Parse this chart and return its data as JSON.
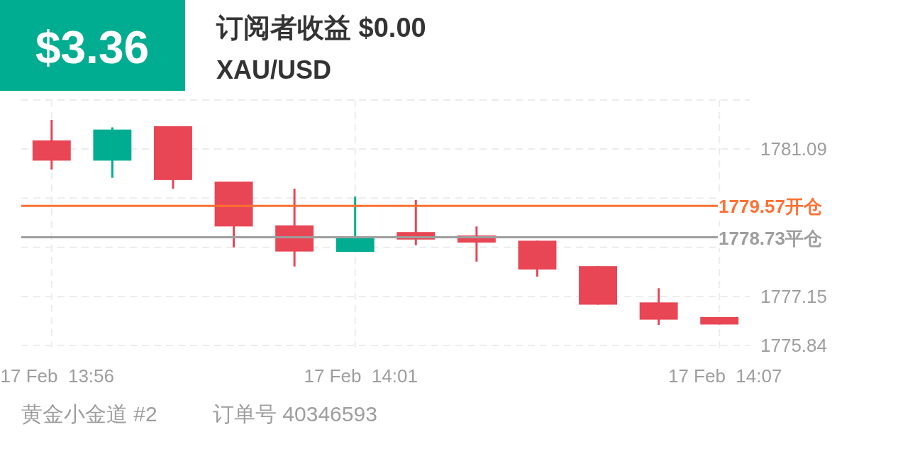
{
  "chart_data": {
    "type": "candlestick",
    "title": "订阅者收益 $0.00",
    "subtitle": "XAU/USD",
    "categories": [
      "17 Feb  13:56",
      null,
      null,
      null,
      null,
      "17 Feb  14:01",
      null,
      null,
      null,
      null,
      null,
      "17 Feb  14:07"
    ],
    "ohlc": [
      [
        1781.32,
        1781.87,
        1780.54,
        1780.78
      ],
      [
        1780.78,
        1781.67,
        1780.32,
        1781.61
      ],
      [
        1781.7,
        1781.7,
        1780.03,
        1780.26
      ],
      [
        1780.22,
        1780.22,
        1778.46,
        1779.02
      ],
      [
        1779.05,
        1780.03,
        1777.95,
        1778.35
      ],
      [
        1778.34,
        1779.82,
        1778.34,
        1778.73
      ],
      [
        1778.87,
        1779.73,
        1778.52,
        1778.67
      ],
      [
        1778.78,
        1779.02,
        1778.08,
        1778.59
      ],
      [
        1778.64,
        1778.64,
        1777.68,
        1777.87
      ],
      [
        1777.96,
        1777.96,
        1776.93,
        1776.93
      ],
      [
        1776.99,
        1777.37,
        1776.39,
        1776.53
      ],
      [
        1776.6,
        1776.6,
        1776.4,
        1776.4
      ]
    ],
    "colors": [
      "#e84655",
      "#00ad91",
      "#e84655",
      "#e84655",
      "#e84655",
      "#00ad91",
      "#e84655",
      "#e84655",
      "#e84655",
      "#e84655",
      "#e84655",
      "#e84655"
    ],
    "ylim": [
      1775.84,
      1782.4
    ],
    "yticks": [
      1775.84,
      1777.15,
      {
        "value": 1778.46,
        "label": null
      },
      {
        "value": 1779.78,
        "label": null
      },
      1781.09,
      {
        "value": 1782.4,
        "label": null
      }
    ],
    "grid": true,
    "ref_lines": [
      {
        "axis": "y",
        "value": 1779.57,
        "label": "1779.57开仓",
        "color": "#ff7133"
      },
      {
        "axis": "y",
        "value": 1778.73,
        "label": "1778.73平仓",
        "color": "#9e9e9e"
      }
    ],
    "annotations": [
      "$3.36",
      "黄金小金道 #2",
      "订单号 40346593"
    ]
  }
}
